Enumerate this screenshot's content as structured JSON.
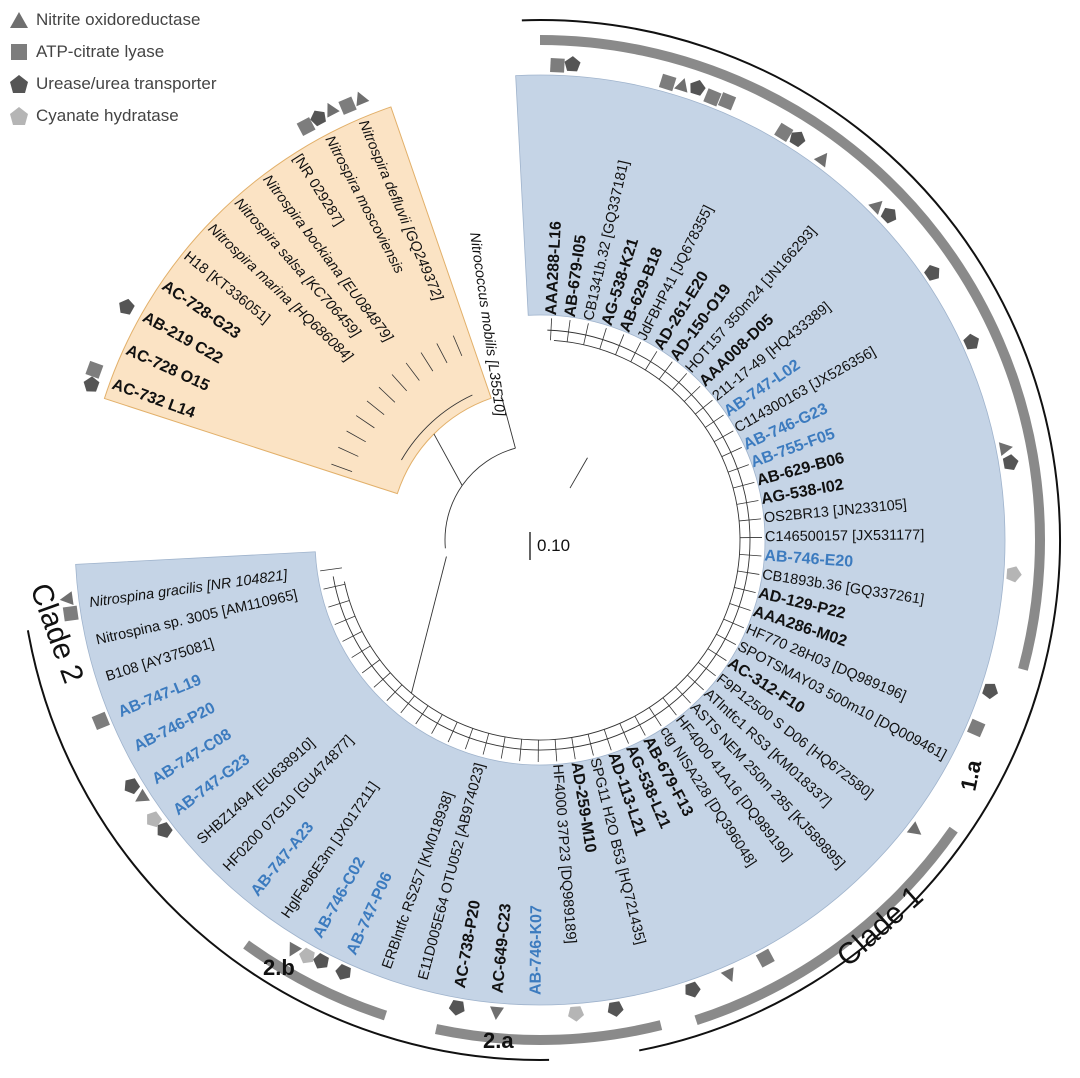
{
  "legend": [
    {
      "shape": "triangle",
      "label": "Nitrite oxidoreductase",
      "color": "#6f6f6f"
    },
    {
      "shape": "square",
      "label": "ATP-citrate lyase",
      "color": "#7d7d7d"
    },
    {
      "shape": "pentagon",
      "label": "Urease/urea transporter",
      "color": "#555555"
    },
    {
      "shape": "pentagon",
      "label": "Cyanate hydratase",
      "color": "#b5b5b5"
    }
  ],
  "scale_bar": "0.10",
  "outgroup_label": "Nitrococcus mobilis [L35510]",
  "clades": {
    "clade1": "Clade 1",
    "clade2": "Clade 2",
    "sub_1a": "1.a",
    "sub_2a": "2.a",
    "sub_2b": "2.b"
  },
  "colors": {
    "nitrospina_sector": "#c5d4e6",
    "nitrospira_sector": "#fbe3c4",
    "sector_border": "#e2b06a",
    "highlight_text": "#3c7bbf",
    "clade_bar": "#8a8a8a"
  },
  "nitrospira_leaves": [
    {
      "label": "Nitrospira defluvii [GQ249372]",
      "style": "italic",
      "markers": [
        "square",
        "triangle"
      ]
    },
    {
      "label": "Nitrospira moscoviensis",
      "style": "italic",
      "markers": [
        "square",
        "pentagon",
        "triangle"
      ]
    },
    {
      "label": "[NR 029287]",
      "style": "plain",
      "markers": []
    },
    {
      "label": "Nitrospira bockiana [EU084879]",
      "style": "italic",
      "markers": []
    },
    {
      "label": "Nitrospira salsa [KC706459]",
      "style": "italic",
      "markers": []
    },
    {
      "label": "Nitrospira marina [HQ686084]",
      "style": "italic",
      "markers": []
    },
    {
      "label": "H18 [KT336051]",
      "style": "plain",
      "markers": []
    },
    {
      "label": "AC-728-G23",
      "style": "bold",
      "markers": []
    },
    {
      "label": "AB-219 C22",
      "style": "bold",
      "markers": [
        "pentagon"
      ]
    },
    {
      "label": "AC-728 O15",
      "style": "bold",
      "markers": []
    },
    {
      "label": "AC-732 L14",
      "style": "bold",
      "markers": [
        "pentagon",
        "square"
      ]
    }
  ],
  "nitrospina_leaves": [
    {
      "label": "AAA288-L16",
      "style": "bold",
      "markers": [
        "square",
        "pentagon"
      ]
    },
    {
      "label": "AB-679-I05",
      "style": "bold",
      "markers": []
    },
    {
      "label": "CB1341b.32 [GQ337181]",
      "style": "plain",
      "markers": []
    },
    {
      "label": "AG-538-K21",
      "style": "bold",
      "markers": [
        "square",
        "triangle",
        "pentagon"
      ]
    },
    {
      "label": "AB-629-B18",
      "style": "bold",
      "markers": [
        "square",
        "square"
      ]
    },
    {
      "label": "JdFBHP41 [JQ678355]",
      "style": "plain",
      "markers": []
    },
    {
      "label": "AD-261-E20",
      "style": "bold",
      "markers": [
        "square",
        "pentagon"
      ]
    },
    {
      "label": "AD-150-O19",
      "style": "bold",
      "markers": [
        "triangle"
      ]
    },
    {
      "label": "HOT157 350m24 [JN166293]",
      "style": "plain",
      "markers": []
    },
    {
      "label": "AAA008-D05",
      "style": "bold",
      "markers": [
        "triangle",
        "pentagon"
      ]
    },
    {
      "label": "211-17-49 [HQ433389]",
      "style": "plain",
      "markers": []
    },
    {
      "label": "AB-747-L02",
      "style": "blue",
      "markers": [
        "pentagon"
      ]
    },
    {
      "label": "C114300163 [JX526356]",
      "style": "plain",
      "markers": []
    },
    {
      "label": "AB-746-G23",
      "style": "blue",
      "markers": [
        "pentagon"
      ]
    },
    {
      "label": "AB-755-F05",
      "style": "blue",
      "markers": []
    },
    {
      "label": "AB-629-B06",
      "style": "bold",
      "markers": []
    },
    {
      "label": "AG-538-I02",
      "style": "bold",
      "markers": [
        "triangle",
        "pentagon"
      ]
    },
    {
      "label": "OS2BR13 [JN233105]",
      "style": "plain",
      "markers": []
    },
    {
      "label": "C146500157 [JX531177]",
      "style": "plain",
      "markers": []
    },
    {
      "label": "AB-746-E20",
      "style": "blue",
      "markers": [
        "pentagon-light"
      ]
    },
    {
      "label": "CB1893b.36 [GQ337261]",
      "style": "plain",
      "markers": []
    },
    {
      "label": "AD-129-P22",
      "style": "bold",
      "markers": []
    },
    {
      "label": "AAA286-M02",
      "style": "bold",
      "markers": [
        "pentagon"
      ]
    },
    {
      "label": "HF770 28H03 [DQ989196]",
      "style": "plain",
      "markers": [
        "square"
      ]
    },
    {
      "label": "SPOTSMAY03 500m10 [DQ009461]",
      "style": "plain",
      "markers": []
    },
    {
      "label": "AC-312-F10",
      "style": "bold",
      "markers": []
    },
    {
      "label": "F9P12500 S D06 [HQ672580]",
      "style": "plain",
      "markers": [
        "triangle"
      ]
    },
    {
      "label": "ATlntfc1 RS3 [KM018337]",
      "style": "plain",
      "markers": []
    },
    {
      "label": "ASTS NEM 250m 285 [KJ589895]",
      "style": "plain",
      "markers": []
    },
    {
      "label": "HF4000 41A16 [DQ989190]",
      "style": "plain",
      "markers": []
    },
    {
      "label": "ctg NISA228 [DQ396048]",
      "style": "plain",
      "markers": []
    },
    {
      "label": "AB-679-F13",
      "style": "bold",
      "markers": [
        "square"
      ]
    },
    {
      "label": "AG-538-L21",
      "style": "bold",
      "markers": [
        "triangle"
      ]
    },
    {
      "label": "AD-113-L21",
      "style": "bold",
      "markers": [
        "pentagon"
      ]
    },
    {
      "label": "SPG11 H2O B53 [HQ721435]",
      "style": "plain",
      "markers": []
    },
    {
      "label": "AD-259-M10",
      "style": "bold",
      "markers": [
        "pentagon"
      ]
    },
    {
      "label": "HF4000 37P23 [DQ989189]",
      "style": "plain",
      "markers": [
        "pentagon-light"
      ]
    },
    {
      "label": "AB-746-K07",
      "style": "blue",
      "markers": []
    },
    {
      "label": "AC-649-C23",
      "style": "bold",
      "markers": [
        "triangle"
      ]
    },
    {
      "label": "AC-738-P20",
      "style": "bold",
      "markers": [
        "pentagon"
      ]
    },
    {
      "label": "E11D005E64 OTU052 [AB974023]",
      "style": "plain",
      "markers": []
    },
    {
      "label": "ERBlntfc RS257 [KM018938]",
      "style": "plain",
      "markers": []
    },
    {
      "label": "AB-747-P06",
      "style": "blue",
      "markers": [
        "pentagon"
      ]
    },
    {
      "label": "AB-746-C02",
      "style": "blue",
      "markers": [
        "pentagon",
        "pentagon-light",
        "triangle"
      ]
    },
    {
      "label": "HglFeb6E3m [JX017211]",
      "style": "plain",
      "markers": []
    },
    {
      "label": "AB-747-A23",
      "style": "blue",
      "markers": []
    },
    {
      "label": "HF0200 07G10 [GU474877]",
      "style": "plain",
      "markers": []
    },
    {
      "label": "SHBZ1494 [EU638910]",
      "style": "plain",
      "markers": []
    },
    {
      "label": "AB-747-G23",
      "style": "blue",
      "markers": [
        "pentagon",
        "pentagon-light"
      ]
    },
    {
      "label": "AB-747-C08",
      "style": "blue",
      "markers": [
        "triangle",
        "pentagon"
      ]
    },
    {
      "label": "AB-746-P20",
      "style": "blue",
      "markers": []
    },
    {
      "label": "AB-747-L19",
      "style": "blue",
      "markers": [
        "square"
      ]
    },
    {
      "label": "B108 [AY375081]",
      "style": "plain",
      "markers": []
    },
    {
      "label": "Nitrospina sp. 3005 [AM110965]",
      "style": "plain",
      "markers": []
    },
    {
      "label": "Nitrospina gracilis [NR 104821]",
      "style": "italic",
      "markers": [
        "square",
        "triangle"
      ]
    }
  ]
}
